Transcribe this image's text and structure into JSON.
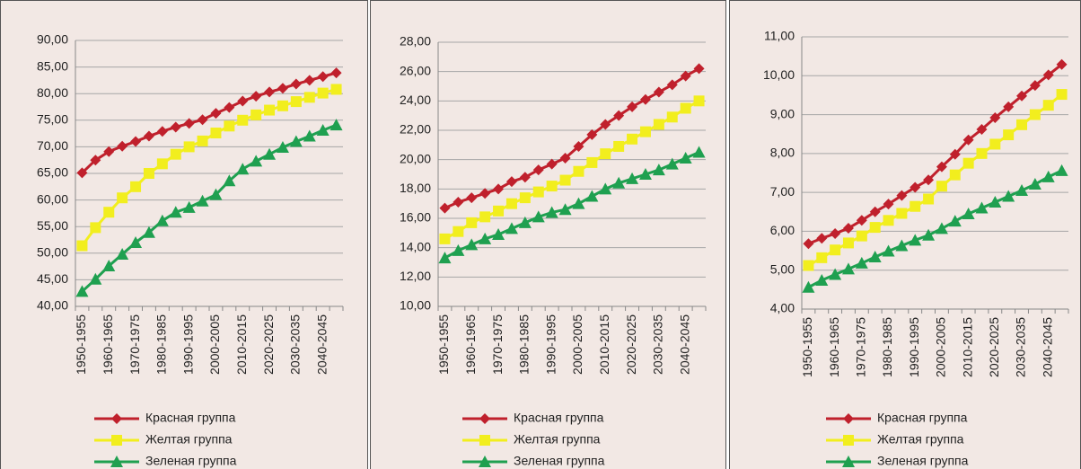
{
  "chart_data": [
    {
      "type": "line",
      "categories": [
        "1950-1955",
        null,
        "1960-1965",
        null,
        "1970-1975",
        null,
        "1980-1985",
        null,
        "1990-1995",
        null,
        "2000-2005",
        null,
        "2010-2015",
        null,
        "2020-2025",
        null,
        "2030-2035",
        null,
        "2040-2045",
        null
      ],
      "series": [
        {
          "name": "Красная группа",
          "color": "#c0202c",
          "marker": "diamond",
          "values": [
            65.1,
            67.5,
            69.1,
            70.1,
            71.0,
            72.0,
            72.9,
            73.7,
            74.4,
            75.1,
            76.3,
            77.4,
            78.6,
            79.5,
            80.3,
            81.0,
            81.8,
            82.5,
            83.2,
            83.9
          ]
        },
        {
          "name": "Желтая группа",
          "color": "#f2ee1e",
          "marker": "square",
          "values": [
            51.4,
            54.8,
            57.7,
            60.4,
            62.5,
            65.0,
            66.8,
            68.6,
            70.0,
            71.1,
            72.6,
            73.9,
            75.0,
            76.0,
            76.9,
            77.7,
            78.5,
            79.3,
            80.1,
            80.8
          ]
        },
        {
          "name": "Зеленая группа",
          "color": "#1fa050",
          "marker": "triangle",
          "values": [
            42.8,
            45.1,
            47.6,
            49.8,
            52.0,
            53.9,
            56.1,
            57.7,
            58.6,
            59.8,
            61.0,
            63.6,
            65.8,
            67.3,
            68.6,
            69.9,
            71.0,
            72.0,
            73.1,
            74.1
          ]
        }
      ],
      "ylim": [
        40,
        90
      ],
      "yticks": [
        {
          "value": 40,
          "label": "40,00"
        },
        {
          "value": 45,
          "label": "45,00"
        },
        {
          "value": 50,
          "label": "50,00"
        },
        {
          "value": 55,
          "label": "55,00"
        },
        {
          "value": 60,
          "label": "60,00"
        },
        {
          "value": 65,
          "label": "65,00"
        },
        {
          "value": 70,
          "label": "70,00"
        },
        {
          "value": 75,
          "label": "75,00"
        },
        {
          "value": 80,
          "label": "80,00"
        },
        {
          "value": 85,
          "label": "85,00"
        },
        {
          "value": 90,
          "label": "90,00"
        }
      ],
      "grid": true,
      "legend": "bottom"
    },
    {
      "type": "line",
      "categories": [
        "1950-1955",
        null,
        "1960-1965",
        null,
        "1970-1975",
        null,
        "1980-1985",
        null,
        "1990-1995",
        null,
        "2000-2005",
        null,
        "2010-2015",
        null,
        "2020-2025",
        null,
        "2030-2035",
        null,
        "2040-2045",
        null
      ],
      "series": [
        {
          "name": "Красная группа",
          "color": "#c0202c",
          "marker": "diamond",
          "values": [
            16.7,
            17.1,
            17.4,
            17.7,
            18.0,
            18.5,
            18.8,
            19.3,
            19.7,
            20.1,
            20.9,
            21.7,
            22.4,
            23.0,
            23.6,
            24.1,
            24.6,
            25.1,
            25.7,
            26.2
          ]
        },
        {
          "name": "Желтая группа",
          "color": "#f2ee1e",
          "marker": "square",
          "values": [
            14.6,
            15.1,
            15.7,
            16.1,
            16.5,
            17.0,
            17.4,
            17.8,
            18.2,
            18.6,
            19.2,
            19.8,
            20.4,
            20.9,
            21.4,
            21.9,
            22.4,
            22.9,
            23.5,
            24.0
          ]
        },
        {
          "name": "Зеленая группа",
          "color": "#1fa050",
          "marker": "triangle",
          "values": [
            13.3,
            13.8,
            14.2,
            14.6,
            14.9,
            15.3,
            15.7,
            16.1,
            16.4,
            16.6,
            17.0,
            17.5,
            18.0,
            18.4,
            18.7,
            19.0,
            19.3,
            19.7,
            20.1,
            20.5
          ]
        }
      ],
      "ylim": [
        10,
        28
      ],
      "yticks": [
        {
          "value": 10,
          "label": "10,00"
        },
        {
          "value": 12,
          "label": "12,00"
        },
        {
          "value": 14,
          "label": "14,00"
        },
        {
          "value": 16,
          "label": "16,00"
        },
        {
          "value": 18,
          "label": "18,00"
        },
        {
          "value": 20,
          "label": "20,00"
        },
        {
          "value": 22,
          "label": "22,00"
        },
        {
          "value": 24,
          "label": "24,00"
        },
        {
          "value": 26,
          "label": "26,00"
        },
        {
          "value": 28,
          "label": "28,00"
        }
      ],
      "grid": true,
      "legend": "bottom"
    },
    {
      "type": "line",
      "categories": [
        "1950-1955",
        null,
        "1960-1965",
        null,
        "1970-1975",
        null,
        "1980-1985",
        null,
        "1990-1995",
        null,
        "2000-2005",
        null,
        "2010-2015",
        null,
        "2020-2025",
        null,
        "2030-2035",
        null,
        "2040-2045",
        null
      ],
      "series": [
        {
          "name": "Красная группа",
          "color": "#c0202c",
          "marker": "diamond",
          "values": [
            5.68,
            5.82,
            5.94,
            6.08,
            6.28,
            6.5,
            6.7,
            6.92,
            7.13,
            7.32,
            7.66,
            7.98,
            8.35,
            8.62,
            8.92,
            9.2,
            9.48,
            9.75,
            10.02,
            10.29
          ]
        },
        {
          "name": "Желтая группа",
          "color": "#f2ee1e",
          "marker": "square",
          "values": [
            5.12,
            5.32,
            5.52,
            5.7,
            5.88,
            6.1,
            6.28,
            6.46,
            6.64,
            6.83,
            7.16,
            7.45,
            7.75,
            8.0,
            8.24,
            8.48,
            8.74,
            9.0,
            9.24,
            9.52
          ]
        },
        {
          "name": "Зеленая группа",
          "color": "#1fa050",
          "marker": "triangle",
          "values": [
            4.56,
            4.74,
            4.89,
            5.03,
            5.18,
            5.34,
            5.49,
            5.63,
            5.77,
            5.9,
            6.07,
            6.26,
            6.45,
            6.6,
            6.75,
            6.9,
            7.05,
            7.21,
            7.4,
            7.56
          ]
        }
      ],
      "ylim": [
        4,
        11
      ],
      "yticks": [
        {
          "value": 4,
          "label": "4,00"
        },
        {
          "value": 5,
          "label": "5,00"
        },
        {
          "value": 6,
          "label": "6,00"
        },
        {
          "value": 7,
          "label": "7,00"
        },
        {
          "value": 8,
          "label": "8,00"
        },
        {
          "value": 9,
          "label": "9,00"
        },
        {
          "value": 10,
          "label": "10,00"
        },
        {
          "value": 11,
          "label": "11,00"
        }
      ],
      "grid": true,
      "legend": "bottom"
    }
  ]
}
